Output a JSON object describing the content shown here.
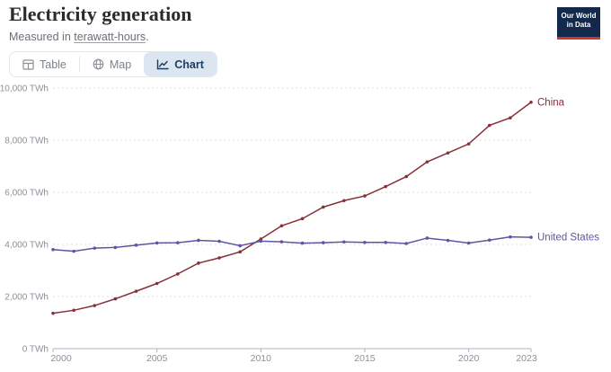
{
  "header": {
    "title": "Electricity generation",
    "subtitle": {
      "prefix": "Measured in ",
      "link_text": "terawatt-hours",
      "suffix": "."
    },
    "logo": {
      "line1": "Our World",
      "line2": "in Data",
      "bg": "#12294B",
      "accent": "#D0342C"
    }
  },
  "tabs": [
    {
      "id": "table",
      "label": "Table",
      "active": false
    },
    {
      "id": "map",
      "label": "Map",
      "active": false
    },
    {
      "id": "chart",
      "label": "Chart",
      "active": true
    }
  ],
  "chart_data": {
    "type": "line",
    "title": "Electricity generation",
    "unit": "TWh",
    "grid": "horizontal-dashed",
    "legend_position": "end-of-line-labels",
    "x": [
      2000,
      2001,
      2002,
      2003,
      2004,
      2005,
      2006,
      2007,
      2008,
      2009,
      2010,
      2011,
      2012,
      2013,
      2014,
      2015,
      2016,
      2017,
      2018,
      2019,
      2020,
      2021,
      2022,
      2023
    ],
    "xticks": [
      2000,
      2005,
      2010,
      2015,
      2020,
      2023
    ],
    "yticks": [
      0,
      2000,
      4000,
      6000,
      8000,
      10000
    ],
    "ylim": [
      0,
      10000
    ],
    "ytick_label_format": "#,### TWh",
    "series": [
      {
        "name": "China",
        "color": "#883039",
        "values": [
          1356,
          1472,
          1654,
          1911,
          2203,
          2500,
          2866,
          3282,
          3482,
          3715,
          4207,
          4715,
          4988,
          5432,
          5680,
          5860,
          6218,
          6604,
          7166,
          7509,
          7857,
          8567,
          8858,
          9456
        ]
      },
      {
        "name": "United States",
        "color": "#5F55A0",
        "values": [
          3802,
          3737,
          3858,
          3883,
          3971,
          4055,
          4065,
          4157,
          4119,
          3950,
          4125,
          4100,
          4048,
          4066,
          4094,
          4078,
          4077,
          4034,
          4243,
          4154,
          4050,
          4165,
          4287,
          4272
        ]
      }
    ]
  }
}
